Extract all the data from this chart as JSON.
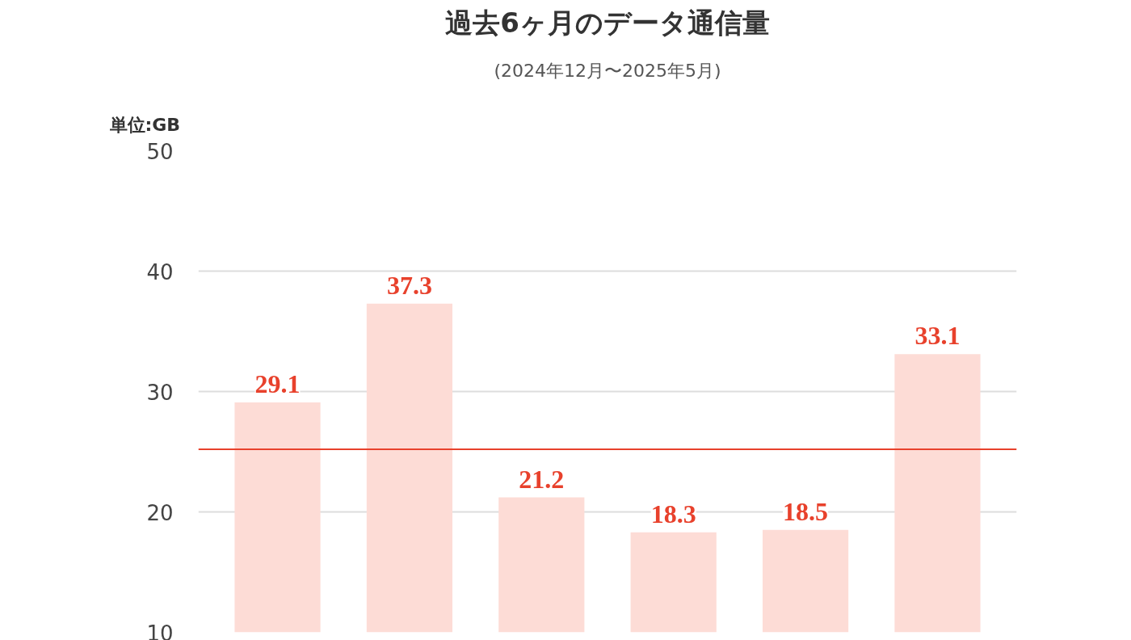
{
  "chart_data": {
    "type": "bar",
    "title": "過去6ヶ月のデータ通信量",
    "subtitle": "(2024年12月〜2025年5月)",
    "ylabel": "単位:GB",
    "categories": [
      null,
      null,
      null,
      null,
      null,
      null
    ],
    "values": [
      29.1,
      37.3,
      21.2,
      18.3,
      18.5,
      33.1
    ],
    "color": "#fddcd6",
    "ylim": [
      10,
      50
    ],
    "yticks": [
      10,
      20,
      30,
      40,
      50
    ],
    "grid": "y",
    "tick_labels": "y",
    "data_labels": true,
    "ref_lines": [
      {
        "axis": "y",
        "value": 25.2,
        "label": null,
        "color": "#e8412c"
      }
    ]
  }
}
